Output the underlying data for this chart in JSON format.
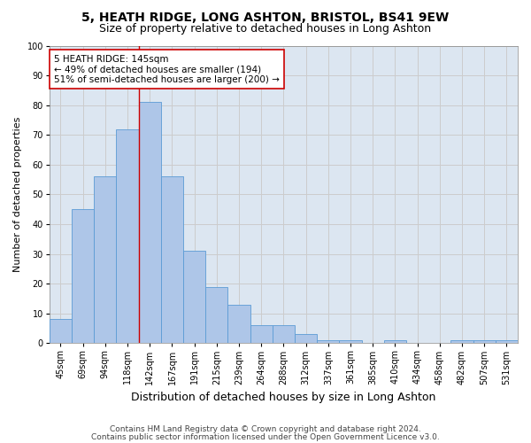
{
  "title": "5, HEATH RIDGE, LONG ASHTON, BRISTOL, BS41 9EW",
  "subtitle": "Size of property relative to detached houses in Long Ashton",
  "xlabel": "Distribution of detached houses by size in Long Ashton",
  "ylabel": "Number of detached properties",
  "categories": [
    "45sqm",
    "69sqm",
    "94sqm",
    "118sqm",
    "142sqm",
    "167sqm",
    "191sqm",
    "215sqm",
    "239sqm",
    "264sqm",
    "288sqm",
    "312sqm",
    "337sqm",
    "361sqm",
    "385sqm",
    "410sqm",
    "434sqm",
    "458sqm",
    "482sqm",
    "507sqm",
    "531sqm"
  ],
  "values": [
    8,
    45,
    56,
    72,
    81,
    56,
    31,
    19,
    13,
    6,
    6,
    3,
    1,
    1,
    0,
    1,
    0,
    0,
    1,
    1,
    1
  ],
  "bar_color": "#aec6e8",
  "bar_edge_color": "#5b9bd5",
  "vline_color": "#cc0000",
  "annotation_text": "5 HEATH RIDGE: 145sqm\n← 49% of detached houses are smaller (194)\n51% of semi-detached houses are larger (200) →",
  "annotation_box_color": "#ffffff",
  "annotation_box_edge": "#cc0000",
  "ylim": [
    0,
    100
  ],
  "yticks": [
    0,
    10,
    20,
    30,
    40,
    50,
    60,
    70,
    80,
    90,
    100
  ],
  "grid_color": "#cccccc",
  "bg_color": "#dce6f1",
  "footer_line1": "Contains HM Land Registry data © Crown copyright and database right 2024.",
  "footer_line2": "Contains public sector information licensed under the Open Government Licence v3.0.",
  "title_fontsize": 10,
  "subtitle_fontsize": 9,
  "xlabel_fontsize": 9,
  "ylabel_fontsize": 8,
  "annotation_fontsize": 7.5,
  "footer_fontsize": 6.5,
  "tick_fontsize": 7
}
